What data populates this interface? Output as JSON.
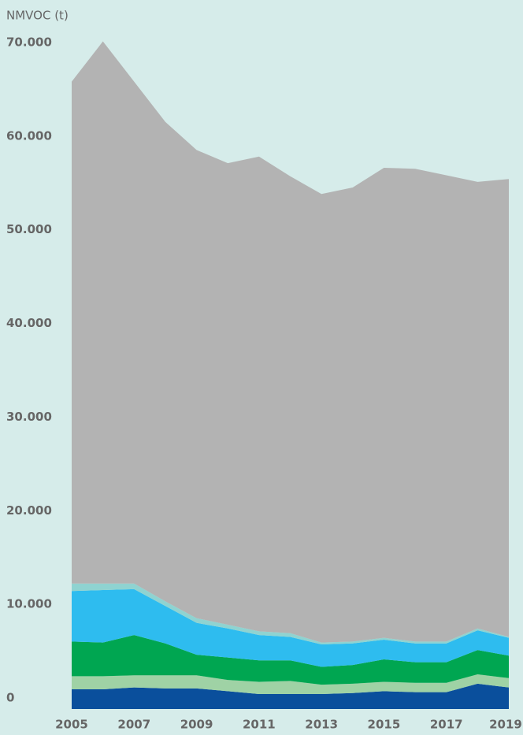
{
  "chart_data": {
    "type": "stacked_area",
    "y_label": "NMVOC (t)",
    "x": [
      2005,
      2006,
      2007,
      2008,
      2009,
      2010,
      2011,
      2012,
      2013,
      2014,
      2015,
      2016,
      2017,
      2018,
      2019
    ],
    "xlim": [
      2005,
      2019
    ],
    "xticks": [
      2005,
      2007,
      2009,
      2011,
      2013,
      2015,
      2017,
      2019
    ],
    "ylim": [
      0,
      70000
    ],
    "yticks": [
      0,
      {
        "value": 10000,
        "label": "10.000"
      },
      {
        "value": 20000,
        "label": "20.000"
      },
      {
        "value": 30000,
        "label": "30.000"
      },
      {
        "value": 40000,
        "label": "40.000"
      },
      {
        "value": 50000,
        "label": "50.000"
      },
      {
        "value": 60000,
        "label": "60.000"
      },
      {
        "value": 70000,
        "label": "70.000"
      }
    ],
    "series": [
      {
        "color": "#0a4f9c",
        "values": [
          2100,
          2100,
          2300,
          2200,
          2200,
          1900,
          1600,
          1600,
          1600,
          1700,
          1900,
          1800,
          1800,
          2700,
          2300
        ]
      },
      {
        "color": "#9fd2a5",
        "values": [
          1400,
          1400,
          1300,
          1400,
          1400,
          1200,
          1300,
          1400,
          1000,
          1000,
          1000,
          1000,
          1000,
          1000,
          1000
        ]
      },
      {
        "color": "#00a651",
        "values": [
          3700,
          3600,
          4300,
          3400,
          2200,
          2400,
          2300,
          2200,
          1900,
          2000,
          2400,
          2200,
          2200,
          2600,
          2400
        ]
      },
      {
        "color": "#2ebcef",
        "values": [
          5400,
          5600,
          4900,
          4000,
          3400,
          3100,
          2700,
          2500,
          2400,
          2300,
          2100,
          2000,
          2000,
          2100,
          1900
        ]
      },
      {
        "color": "#8fd3d1",
        "values": [
          800,
          700,
          600,
          500,
          500,
          400,
          400,
          400,
          200,
          200,
          200,
          200,
          200,
          200,
          100
        ]
      },
      {
        "color": "#b3b3b3",
        "values": [
          53600,
          57900,
          53600,
          51200,
          50000,
          49300,
          50700,
          48800,
          47900,
          48500,
          50200,
          50500,
          49800,
          47700,
          48900
        ]
      }
    ]
  }
}
